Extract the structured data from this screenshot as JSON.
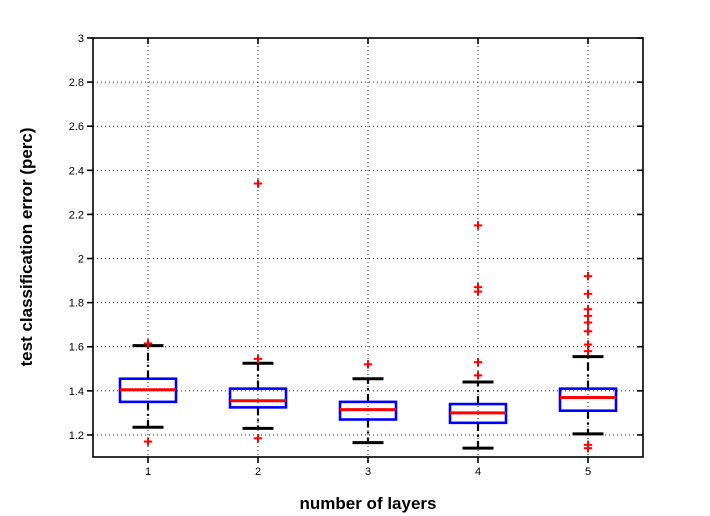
{
  "chart_data": {
    "type": "boxplot",
    "title": "",
    "xlabel": "number of layers",
    "ylabel": "test classification error (perc)",
    "categories": [
      "1",
      "2",
      "3",
      "4",
      "5"
    ],
    "ylim": [
      1.1,
      3.0
    ],
    "yticks": [
      1.2,
      1.4,
      1.6,
      1.8,
      2.0,
      2.2,
      2.4,
      2.6,
      2.8,
      3.0
    ],
    "ytick_labels": [
      "1.2",
      "1.4",
      "1.6",
      "1.8",
      "2",
      "2.2",
      "2.4",
      "2.6",
      "2.8",
      "3"
    ],
    "grid": true,
    "legend": "none",
    "boxes": [
      {
        "category": "1",
        "whisker_low": 1.235,
        "q1": 1.35,
        "median": 1.405,
        "q3": 1.455,
        "whisker_high": 1.605,
        "outliers": [
          1.615,
          1.17
        ]
      },
      {
        "category": "2",
        "whisker_low": 1.23,
        "q1": 1.325,
        "median": 1.355,
        "q3": 1.41,
        "whisker_high": 1.525,
        "outliers": [
          2.34,
          1.545,
          1.185
        ]
      },
      {
        "category": "3",
        "whisker_low": 1.165,
        "q1": 1.27,
        "median": 1.315,
        "q3": 1.35,
        "whisker_high": 1.455,
        "outliers": [
          1.52
        ]
      },
      {
        "category": "4",
        "whisker_low": 1.14,
        "q1": 1.255,
        "median": 1.3,
        "q3": 1.34,
        "whisker_high": 1.44,
        "outliers": [
          2.15,
          1.87,
          1.85,
          1.53,
          1.47
        ]
      },
      {
        "category": "5",
        "whisker_low": 1.205,
        "q1": 1.31,
        "median": 1.37,
        "q3": 1.41,
        "whisker_high": 1.555,
        "outliers": [
          1.92,
          1.84,
          1.77,
          1.74,
          1.71,
          1.67,
          1.61,
          1.58,
          1.155,
          1.14
        ]
      }
    ],
    "colors": {
      "box_edge": "#0000ff",
      "median": "#ff0000",
      "whisker": "#000000",
      "outlier": "#ff0000",
      "axis": "#000000",
      "grid": "#222222",
      "background": "#ffffff"
    }
  }
}
